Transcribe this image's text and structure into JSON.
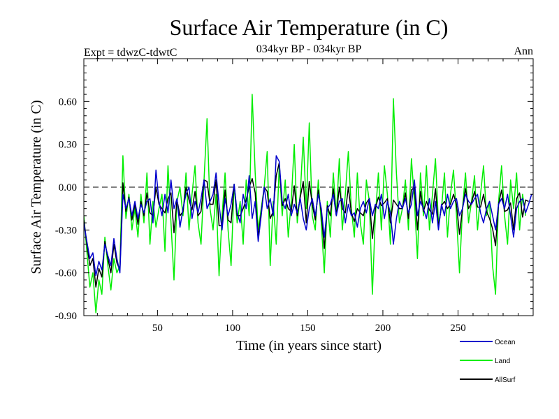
{
  "header": {
    "title": "Surface Air Temperature (in C)",
    "experiment": "Expt = tdwzC-tdwtC",
    "subtitle": "034kyr BP - 034kyr BP",
    "season": "Ann"
  },
  "chart_data": {
    "type": "line",
    "title": "Surface Air Temperature (in C)",
    "xlabel": "Time (in years since start)",
    "ylabel": "Surface Air Temperature (in C)",
    "xlim": [
      1,
      300
    ],
    "ylim": [
      -0.9,
      0.9
    ],
    "x_ticks": [
      50,
      100,
      150,
      200,
      250
    ],
    "x_tick_labels": [
      "50",
      "100",
      "150",
      "200",
      "250"
    ],
    "y_ticks": [
      -0.9,
      -0.6,
      -0.3,
      0.0,
      0.3,
      0.6
    ],
    "y_tick_labels": [
      "-0.90",
      "-0.60",
      "-0.30",
      "0.00",
      "0.30",
      "0.60"
    ],
    "reference_line": 0.0,
    "grid": false,
    "legend_position": "bottom-right",
    "x_step": 2,
    "series": [
      {
        "name": "Ocean",
        "color": "#0000cc",
        "values": [
          -0.25,
          -0.38,
          -0.5,
          -0.46,
          -0.62,
          -0.52,
          -0.58,
          -0.4,
          -0.48,
          -0.55,
          -0.36,
          -0.5,
          -0.6,
          -0.05,
          -0.15,
          -0.08,
          -0.2,
          -0.1,
          -0.22,
          -0.12,
          -0.18,
          -0.1,
          -0.08,
          -0.25,
          0.12,
          -0.1,
          -0.2,
          -0.05,
          -0.18,
          0.05,
          -0.15,
          -0.08,
          -0.28,
          -0.15,
          -0.05,
          0.0,
          -0.22,
          -0.1,
          -0.18,
          -0.08,
          0.05,
          -0.15,
          -0.1,
          -0.05,
          0.1,
          -0.12,
          -0.3,
          -0.08,
          -0.2,
          -0.12,
          0.02,
          -0.18,
          -0.25,
          -0.05,
          -0.15,
          0.08,
          -0.22,
          -0.1,
          -0.38,
          -0.2,
          0.0,
          -0.15,
          -0.08,
          -0.2,
          0.22,
          0.18,
          -0.1,
          -0.15,
          -0.05,
          -0.2,
          -0.12,
          -0.18,
          -0.08,
          -0.22,
          -0.3,
          -0.15,
          -0.08,
          -0.2,
          -0.05,
          -0.15,
          -0.35,
          -0.15,
          -0.12,
          -0.05,
          -0.2,
          -0.1,
          -0.08,
          -0.25,
          -0.12,
          -0.2,
          -0.18,
          -0.28,
          -0.15,
          -0.1,
          -0.18,
          -0.08,
          -0.2,
          -0.12,
          -0.15,
          -0.05,
          -0.22,
          -0.1,
          -0.18,
          -0.4,
          -0.22,
          -0.1,
          -0.15,
          -0.08,
          -0.18,
          -0.12,
          0.05,
          -0.2,
          -0.1,
          -0.15,
          -0.22,
          -0.08,
          -0.25,
          -0.1,
          -0.3,
          -0.12,
          -0.2,
          -0.05,
          -0.15,
          -0.1,
          -0.08,
          -0.2,
          -0.15,
          -0.05,
          -0.1,
          -0.12,
          -0.08,
          -0.05,
          -0.18,
          -0.25,
          -0.15,
          -0.1,
          -0.2,
          -0.3,
          -0.12,
          -0.08,
          -0.15,
          -0.05,
          -0.2,
          -0.35,
          -0.15,
          -0.1,
          -0.08,
          -0.18,
          -0.12,
          -0.05
        ]
      },
      {
        "name": "Land",
        "color": "#00ee00",
        "values": [
          -0.2,
          -0.45,
          -0.7,
          -0.6,
          -0.88,
          -0.65,
          -0.75,
          -0.35,
          -0.55,
          -0.72,
          -0.5,
          -0.6,
          -0.55,
          0.22,
          -0.22,
          -0.05,
          -0.3,
          -0.15,
          -0.35,
          -0.05,
          -0.25,
          0.1,
          -0.4,
          -0.1,
          -0.28,
          -0.15,
          -0.05,
          -0.45,
          0.15,
          -0.25,
          -0.65,
          -0.1,
          0.0,
          -0.2,
          0.1,
          -0.3,
          -0.05,
          0.15,
          -0.25,
          -0.4,
          0.05,
          0.48,
          -0.15,
          -0.3,
          -0.05,
          -0.62,
          -0.2,
          0.1,
          -0.3,
          -0.55,
          0.02,
          -0.25,
          -0.1,
          -0.4,
          0.05,
          -0.2,
          0.65,
          0.1,
          -0.3,
          -0.15,
          0.0,
          0.25,
          -0.55,
          -0.1,
          -0.4,
          0.15,
          -0.2,
          0.05,
          -0.35,
          -0.1,
          0.3,
          -0.25,
          -0.05,
          0.35,
          -0.15,
          0.45,
          -0.2,
          -0.3,
          0.05,
          -0.25,
          -0.6,
          -0.1,
          -0.35,
          0.1,
          -0.2,
          0.2,
          -0.3,
          -0.05,
          0.25,
          -0.15,
          -0.35,
          0.1,
          -0.25,
          -0.4,
          0.05,
          -0.1,
          -0.75,
          -0.2,
          0.1,
          -0.3,
          0.15,
          -0.05,
          -0.4,
          0.62,
          0.1,
          -0.25,
          -0.15,
          0.05,
          -0.3,
          0.2,
          -0.1,
          -0.5,
          0.1,
          -0.2,
          0.15,
          -0.3,
          -0.05,
          0.2,
          -0.25,
          -0.15,
          0.1,
          -0.35,
          -0.05,
          0.12,
          -0.2,
          -0.6,
          -0.15,
          0.1,
          -0.25,
          -0.1,
          0.08,
          -0.3,
          -0.05,
          0.15,
          -0.2,
          -0.1,
          -0.55,
          -0.75,
          -0.1,
          0.15,
          -0.2,
          -0.4,
          0.05,
          -0.15,
          0.1,
          -0.3,
          -0.05,
          -0.2
        ]
      },
      {
        "name": "AllSurf",
        "color": "#000000",
        "values": [
          -0.23,
          -0.4,
          -0.55,
          -0.5,
          -0.7,
          -0.57,
          -0.63,
          -0.38,
          -0.5,
          -0.6,
          -0.4,
          -0.53,
          -0.58,
          0.03,
          -0.17,
          -0.07,
          -0.23,
          -0.12,
          -0.26,
          -0.1,
          -0.2,
          -0.04,
          -0.18,
          -0.2,
          0.0,
          -0.12,
          -0.15,
          -0.18,
          -0.08,
          -0.04,
          -0.32,
          -0.09,
          -0.2,
          -0.17,
          0.0,
          -0.09,
          -0.16,
          -0.03,
          -0.2,
          -0.17,
          0.05,
          0.04,
          -0.12,
          -0.12,
          0.05,
          -0.27,
          -0.27,
          -0.02,
          -0.23,
          -0.25,
          0.02,
          -0.2,
          -0.2,
          -0.15,
          -0.09,
          0.0,
          0.06,
          -0.04,
          -0.35,
          -0.18,
          0.0,
          -0.03,
          -0.22,
          -0.17,
          0.08,
          0.17,
          -0.13,
          -0.08,
          -0.15,
          -0.17,
          0.01,
          -0.2,
          -0.07,
          0.04,
          -0.25,
          0.04,
          -0.12,
          -0.23,
          -0.02,
          -0.18,
          -0.43,
          -0.13,
          -0.2,
          -0.01,
          -0.2,
          0.0,
          -0.15,
          -0.18,
          0.0,
          -0.18,
          -0.24,
          -0.15,
          -0.18,
          -0.2,
          -0.11,
          -0.08,
          -0.36,
          -0.15,
          -0.07,
          -0.13,
          -0.11,
          -0.08,
          -0.25,
          -0.09,
          -0.12,
          -0.15,
          -0.15,
          -0.04,
          -0.22,
          -0.02,
          0.0,
          -0.3,
          -0.03,
          -0.17,
          -0.1,
          -0.16,
          -0.19,
          -0.01,
          -0.28,
          -0.13,
          -0.1,
          -0.15,
          -0.12,
          -0.05,
          -0.12,
          -0.33,
          -0.15,
          -0.01,
          -0.15,
          -0.11,
          -0.03,
          -0.14,
          -0.14,
          -0.05,
          -0.17,
          -0.22,
          -0.29,
          -0.41,
          -0.12,
          -0.02,
          -0.17,
          -0.16,
          -0.11,
          -0.3,
          -0.08,
          -0.04,
          -0.21,
          -0.09,
          -0.1
        ]
      }
    ]
  }
}
